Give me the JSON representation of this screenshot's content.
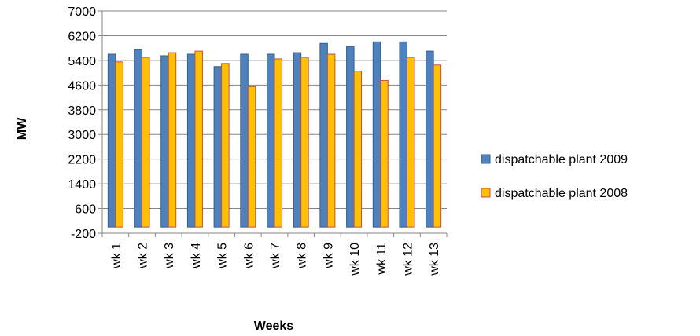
{
  "chart_data": {
    "type": "bar",
    "title": "",
    "xlabel": "Weeks",
    "ylabel": "MW",
    "ylim": [
      -200,
      7000
    ],
    "yticks": [
      -200,
      600,
      1400,
      2200,
      3000,
      3800,
      4600,
      5400,
      6200,
      7000
    ],
    "grid": true,
    "legend_position": "right",
    "categories": [
      "wk 1",
      "wk 2",
      "wk 3",
      "wk 4",
      "wk 5",
      "wk 6",
      "wk 7",
      "wk 8",
      "wk 9",
      "wk 10",
      "wk 11",
      "wk 12",
      "wk 13"
    ],
    "series": [
      {
        "name": "dispatchable plant 2009",
        "color": "#4F81BD",
        "values": [
          5600,
          5750,
          5550,
          5600,
          5200,
          5600,
          5600,
          5650,
          5950,
          5850,
          6000,
          6000,
          5700
        ]
      },
      {
        "name": "dispatchable plant 2008",
        "color": "#FFC000",
        "values": [
          5350,
          5500,
          5650,
          5700,
          5300,
          4550,
          5450,
          5500,
          5600,
          5050,
          4750,
          5500,
          5250
        ]
      }
    ]
  }
}
